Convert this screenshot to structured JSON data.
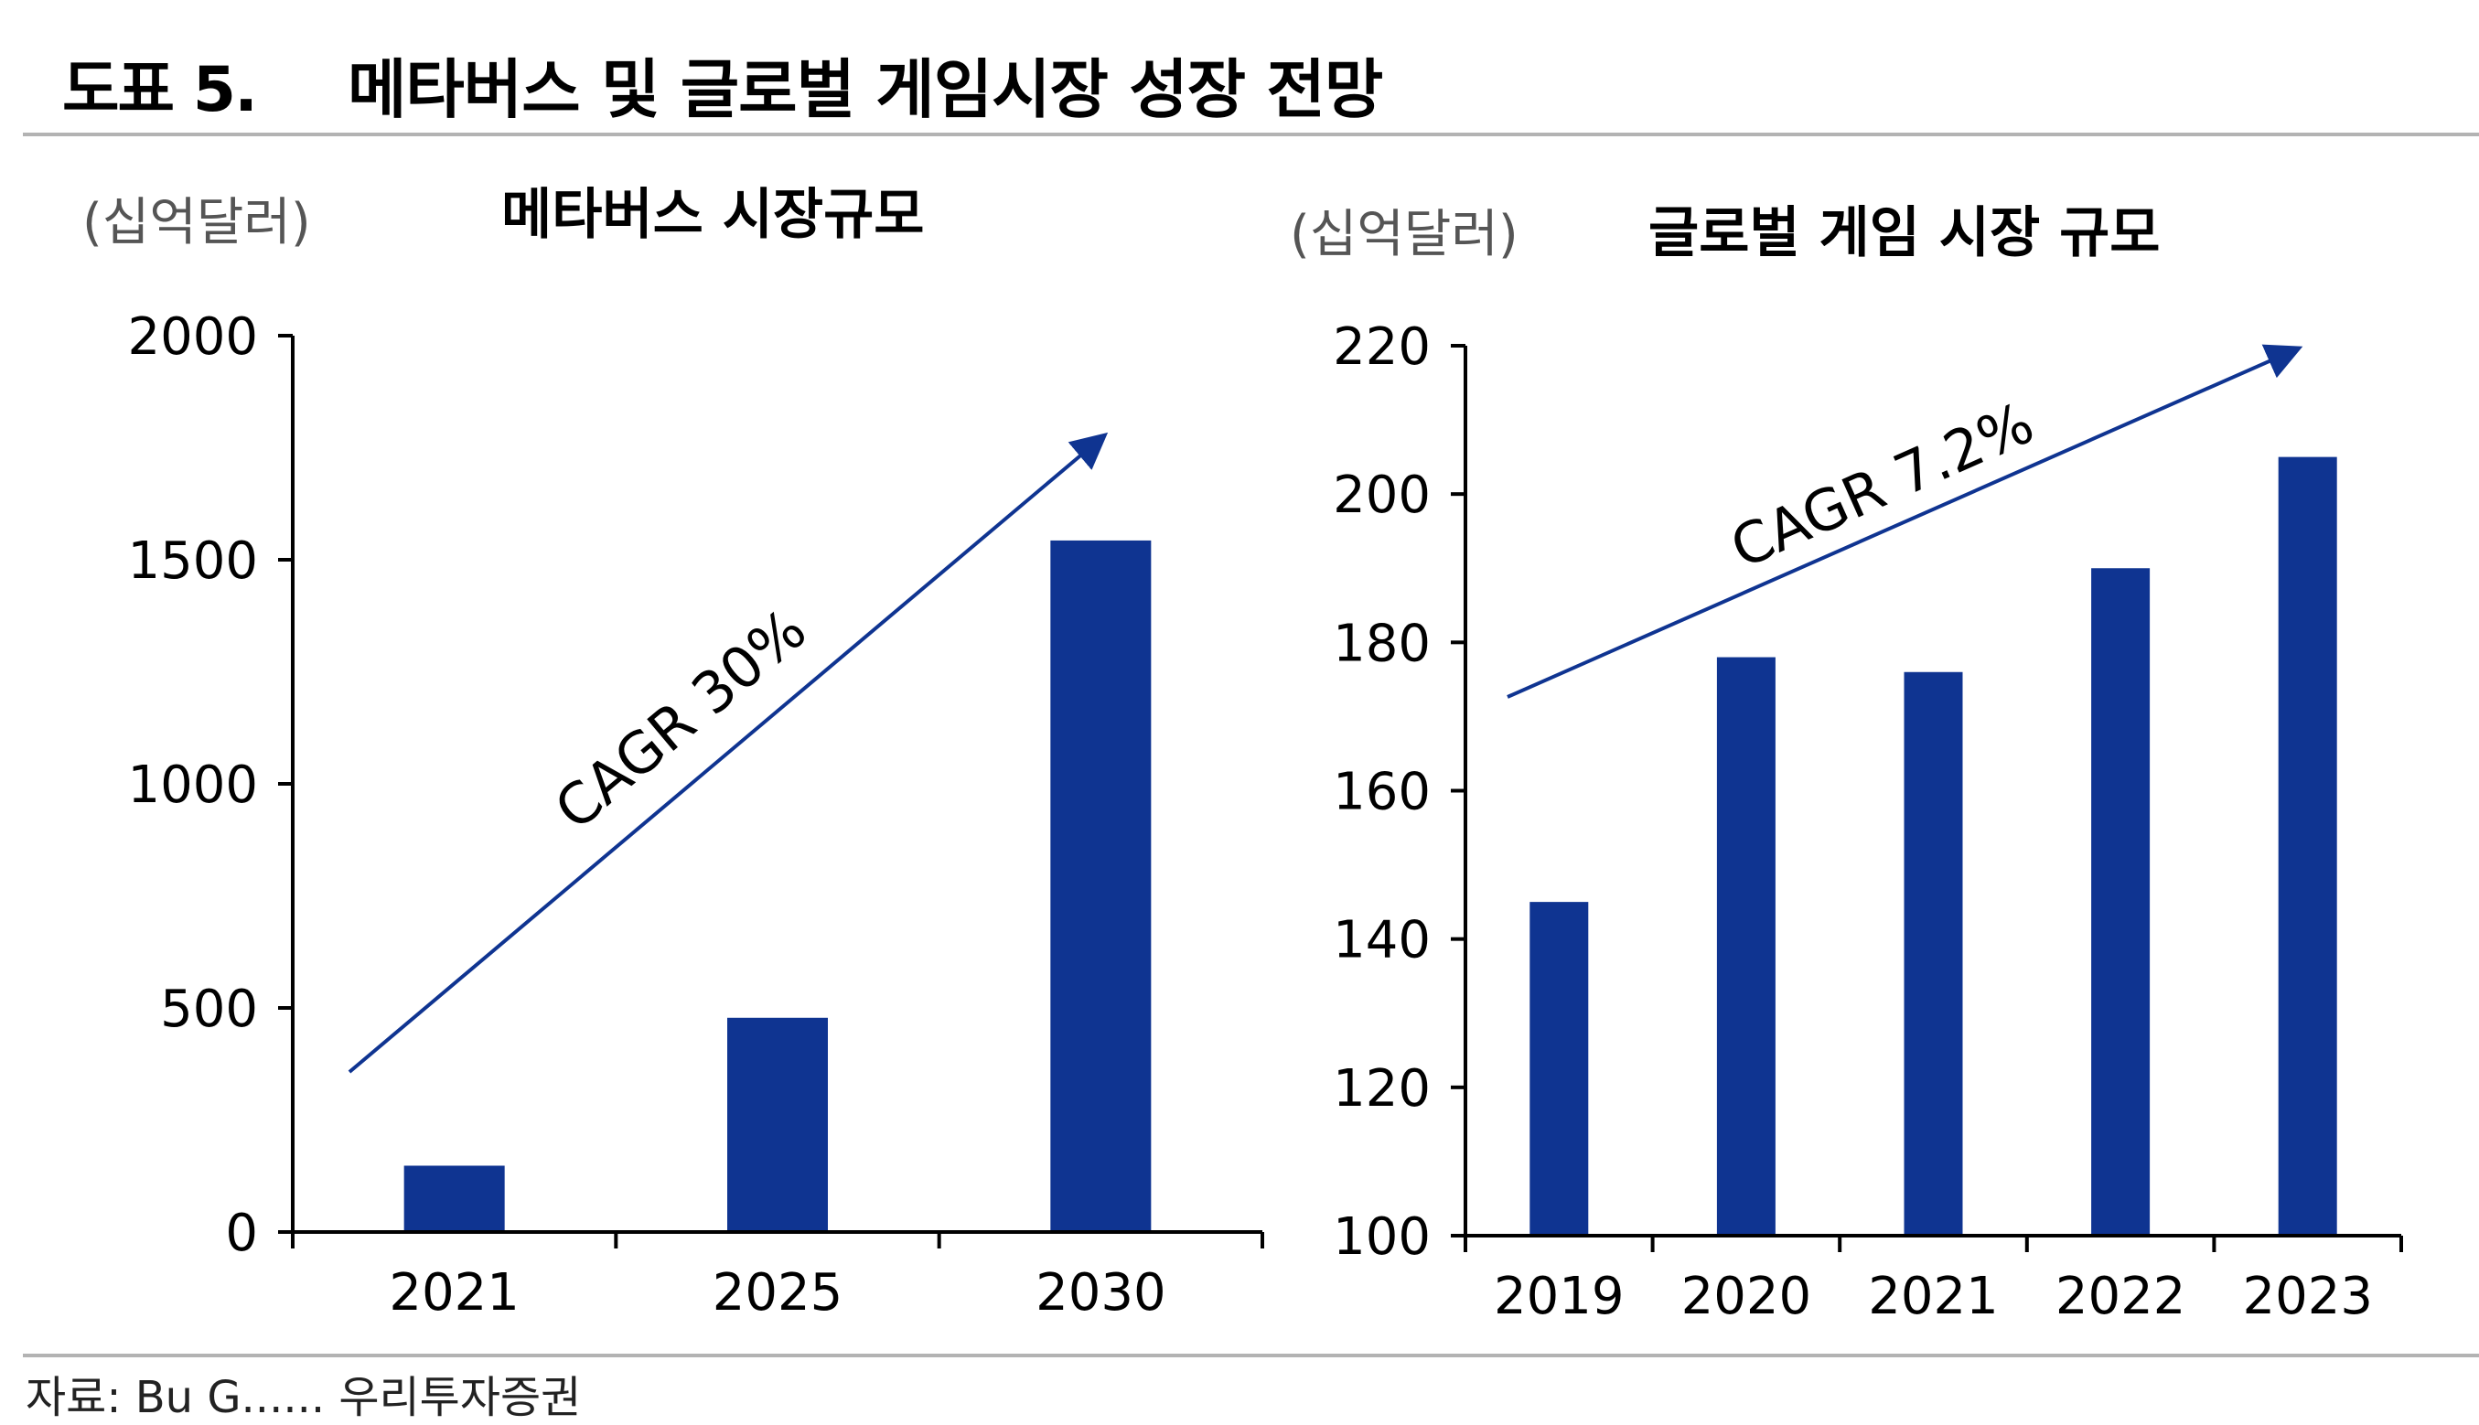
{
  "header": {
    "figure_label": "도표 5.",
    "title": "메타버스 및 글로벌 게임시장 성장 전망"
  },
  "footer": {
    "source": "자료: Bu G...... 우리투자증권"
  },
  "colors": {
    "bar": "#0f3491",
    "arrow": "#0f3491",
    "rule": "#b3b3b3"
  },
  "chart_data": [
    {
      "type": "bar",
      "title": "메타버스 시장규모",
      "unit_label": "(십억달러)",
      "categories": [
        "2021",
        "2025",
        "2030"
      ],
      "values": [
        148,
        478,
        1543
      ],
      "ylim": [
        0,
        2000
      ],
      "yticks": [
        0,
        500,
        1000,
        1500,
        2000
      ],
      "annotation": "CAGR 30%",
      "grid": false
    },
    {
      "type": "bar",
      "title": "글로벌 게임 시장 규모",
      "unit_label": "(십억달러)",
      "categories": [
        "2019",
        "2020",
        "2021",
        "2022",
        "2023"
      ],
      "values": [
        145,
        178,
        176,
        190,
        205
      ],
      "ylim": [
        100,
        220
      ],
      "yticks": [
        100,
        120,
        140,
        160,
        180,
        200,
        220
      ],
      "annotation": "CAGR 7.2%",
      "grid": false
    }
  ]
}
